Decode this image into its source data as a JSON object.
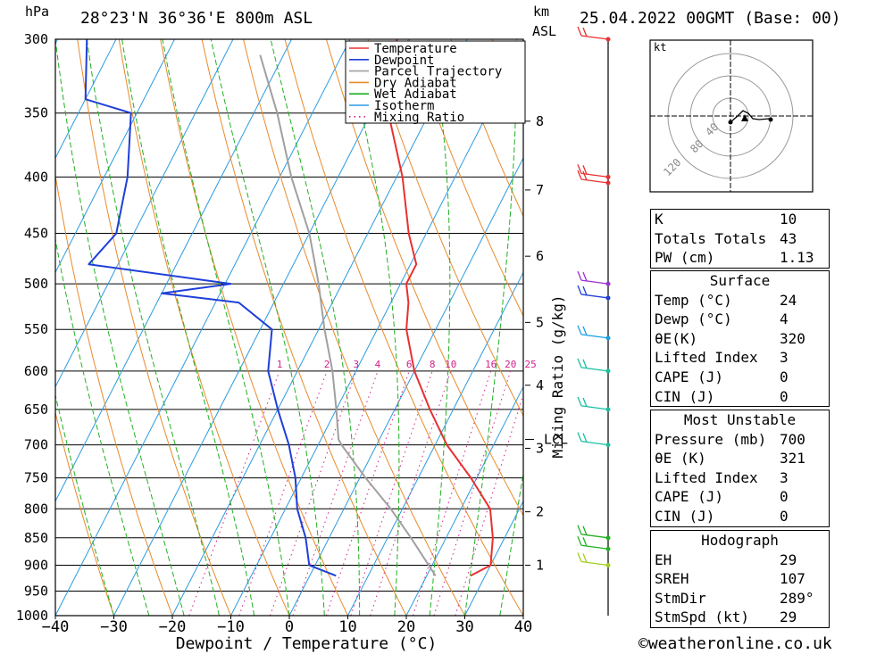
{
  "header": {
    "location": "28°23'N  36°36'E  800m  ASL",
    "date": "25.04.2022  00GMT  (Base: 00)",
    "hpa_label": "hPa",
    "km_label": "km",
    "asl_label": "ASL"
  },
  "chart_data": {
    "type": "line",
    "title": "Skew-T log-P sounding",
    "xlabel": "Dewpoint / Temperature (°C)",
    "ylabel": "hPa",
    "mixing_ratio_axis_label": "Mixing Ratio (g/kg)",
    "x_ticks": [
      -40,
      -30,
      -20,
      -10,
      0,
      10,
      20,
      30,
      40
    ],
    "x_tick_labels": [
      "−40",
      "−30",
      "−20",
      "−10",
      "0",
      "10",
      "20",
      "30",
      "40"
    ],
    "pressure_levels": [
      300,
      350,
      400,
      450,
      500,
      550,
      600,
      650,
      700,
      750,
      800,
      850,
      900,
      950,
      1000
    ],
    "km_ticks": [
      1,
      2,
      3,
      4,
      5,
      6,
      7,
      8
    ],
    "lcl_label": "LCL",
    "lcl_pressure": 692,
    "mixing_ratio_values": [
      1,
      2,
      3,
      4,
      6,
      8,
      10,
      16,
      20,
      25
    ],
    "legend": [
      "Temperature",
      "Dewpoint",
      "Parcel Trajectory",
      "Dry Adiabat",
      "Wet Adiabat",
      "Isotherm",
      "Mixing Ratio"
    ],
    "colors": {
      "temperature": "#e83030",
      "dewpoint": "#1f3fd8",
      "parcel": "#a0a0a0",
      "dry_adiabat": "#e88a2c",
      "wet_adiabat": "#22b022",
      "isotherm": "#2a9ae0",
      "mixing_ratio": "#d0208a"
    },
    "series": [
      {
        "name": "Temperature",
        "points": [
          [
            920,
            27.5
          ],
          [
            900,
            30
          ],
          [
            850,
            28
          ],
          [
            800,
            25
          ],
          [
            750,
            19
          ],
          [
            700,
            12
          ],
          [
            650,
            6
          ],
          [
            600,
            0
          ],
          [
            550,
            -5
          ],
          [
            520,
            -7
          ],
          [
            500,
            -9
          ],
          [
            480,
            -9
          ],
          [
            450,
            -13
          ],
          [
            400,
            -19
          ],
          [
            350,
            -27
          ],
          [
            340,
            -27
          ],
          [
            300,
            -32
          ]
        ]
      },
      {
        "name": "Dewpoint",
        "points": [
          [
            920,
            4.5
          ],
          [
            900,
            -1
          ],
          [
            850,
            -4
          ],
          [
            800,
            -8
          ],
          [
            750,
            -11
          ],
          [
            700,
            -15
          ],
          [
            650,
            -20
          ],
          [
            600,
            -25
          ],
          [
            550,
            -28
          ],
          [
            520,
            -36
          ],
          [
            510,
            -50
          ],
          [
            500,
            -39
          ],
          [
            480,
            -65
          ],
          [
            450,
            -63
          ],
          [
            400,
            -66
          ],
          [
            350,
            -71
          ],
          [
            340,
            -80
          ],
          [
            300,
            -85
          ]
        ]
      },
      {
        "name": "Parcel Trajectory",
        "points": [
          [
            920,
            21.5
          ],
          [
            850,
            14
          ],
          [
            800,
            8
          ],
          [
            750,
            1
          ],
          [
            700,
            -6
          ],
          [
            692,
            -7
          ],
          [
            650,
            -10
          ],
          [
            600,
            -14
          ],
          [
            550,
            -19
          ],
          [
            500,
            -24
          ],
          [
            450,
            -30
          ],
          [
            400,
            -38
          ],
          [
            350,
            -46
          ],
          [
            310,
            -54
          ]
        ]
      }
    ]
  },
  "winds": {
    "label": "kt",
    "hodo_rings": [
      "40",
      "80",
      "120"
    ]
  },
  "indices": {
    "general": [
      {
        "key": "K",
        "value": "10"
      },
      {
        "key": "Totals Totals",
        "value": "43"
      },
      {
        "key": "PW (cm)",
        "value": "1.13"
      }
    ],
    "surface": {
      "title": "Surface",
      "rows": [
        {
          "key": "Temp (°C)",
          "value": "24"
        },
        {
          "key": "Dewp (°C)",
          "value": "4"
        },
        {
          "key": "θE(K)",
          "value": "320"
        },
        {
          "key": "Lifted Index",
          "value": "3"
        },
        {
          "key": "CAPE (J)",
          "value": "0"
        },
        {
          "key": "CIN (J)",
          "value": "0"
        }
      ]
    },
    "most_unstable": {
      "title": "Most Unstable",
      "rows": [
        {
          "key": "Pressure (mb)",
          "value": "700"
        },
        {
          "key": "θE (K)",
          "value": "321"
        },
        {
          "key": "Lifted Index",
          "value": "3"
        },
        {
          "key": "CAPE (J)",
          "value": "0"
        },
        {
          "key": "CIN (J)",
          "value": "0"
        }
      ]
    },
    "hodograph": {
      "title": "Hodograph",
      "rows": [
        {
          "key": "EH",
          "value": "29"
        },
        {
          "key": "SREH",
          "value": "107"
        },
        {
          "key": "StmDir",
          "value": "289°"
        },
        {
          "key": "StmSpd (kt)",
          "value": "29"
        }
      ]
    }
  },
  "footer": {
    "credit": "©weatheronline.co.uk"
  }
}
